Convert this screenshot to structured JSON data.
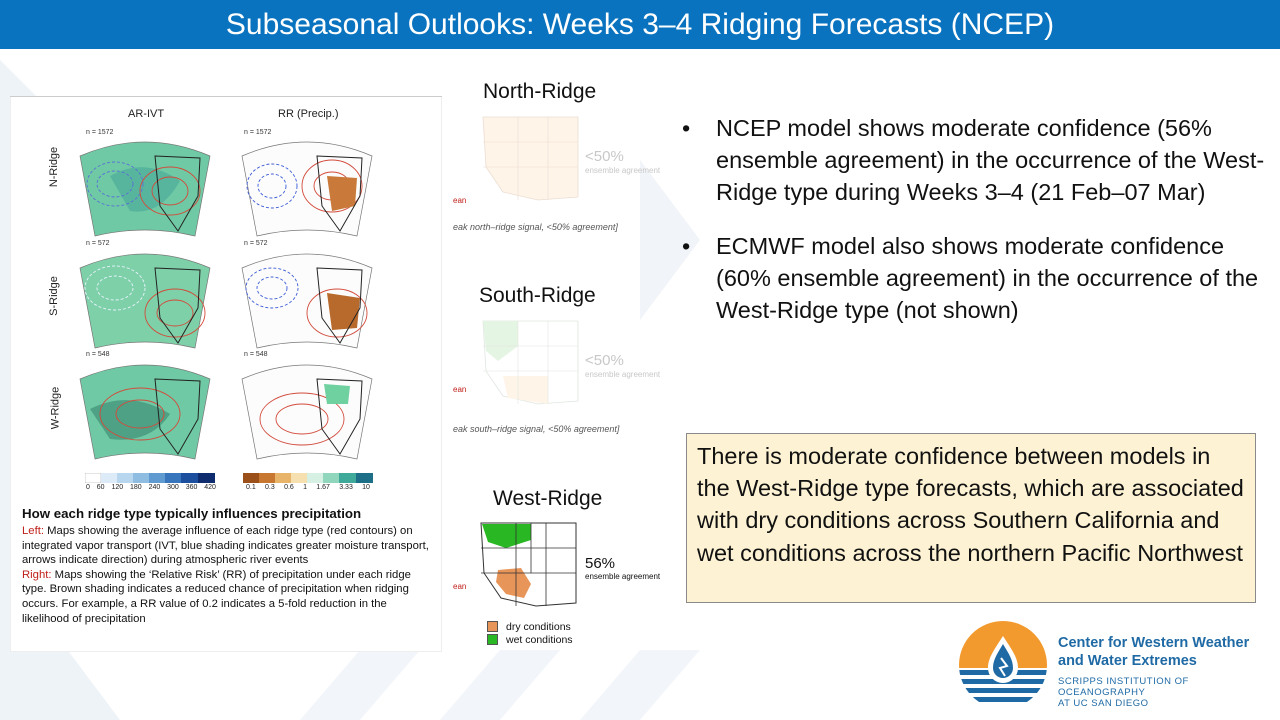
{
  "title": "Subseasonal Outlooks: Weeks 3–4 Ridging Forecasts (NCEP)",
  "figure": {
    "col_headers": [
      "AR-IVT",
      "RR (Precip.)"
    ],
    "row_labels": [
      "N-Ridge",
      "S-Ridge",
      "W-Ridge"
    ],
    "n_labels": [
      "n = 1572",
      "n = 1572",
      "n = 572",
      "n = 572",
      "n = 548",
      "n = 548"
    ],
    "ivt_ticks": [
      "0",
      "60",
      "120",
      "180",
      "240",
      "300",
      "360",
      "420"
    ],
    "rr_ticks": [
      "0.1",
      "0.3",
      "0.6",
      "1",
      "1.67",
      "3.33",
      "10"
    ],
    "caption_title": "How each ridge type typically influences precipitation",
    "left_label": "Left:",
    "left_text": "Maps showing the average influence of each ridge type (red contours) on integrated vapor transport (IVT, blue shading indicates greater moisture transport, arrows indicate direction) during atmospheric river events",
    "right_label": "Right:",
    "right_text": "Maps showing the ‘Relative Risk’ (RR) of precipitation under each ridge type. Brown shading indicates a reduced chance of precipitation when ridging occurs. For example, a RR value of 0.2 indicates a 5-fold reduction in the likelihood of precipitation"
  },
  "mini_panels": [
    {
      "title": "North-Ridge",
      "agreement": "<50%",
      "agreement_sub": "ensemble agreement",
      "note": "eak north–ridge signal, <50% agreement]",
      "frag": "ean"
    },
    {
      "title": "South-Ridge",
      "agreement": "<50%",
      "agreement_sub": "ensemble agreement",
      "note": "eak south–ridge signal, <50% agreement]",
      "frag": "ean"
    },
    {
      "title": "West-Ridge",
      "agreement": "56%",
      "agreement_sub": "ensemble agreement",
      "frag": "ean"
    }
  ],
  "legend": {
    "dry_label": "dry conditions",
    "wet_label": "wet conditions",
    "dry_color": "#e8955a",
    "wet_color": "#29b823"
  },
  "bullets": [
    "NCEP model shows moderate confidence (56% ensemble agreement) in the occurrence of the West-Ridge type during Weeks 3–4 (21 Feb–07 Mar)",
    "ECMWF model also shows moderate confidence (60% ensemble agreement) in the occurrence of the West-Ridge type (not shown)"
  ],
  "bullet_char": "•",
  "summary": "There is moderate confidence between models in the West-Ridge type forecasts, which are associated with dry conditions across Southern California and wet conditions across the northern Pacific Northwest",
  "logo": {
    "line1": "Center for Western Weather",
    "line2": "and Water Extremes",
    "line3": "SCRIPPS INSTITUTION OF OCEANOGRAPHY",
    "line4": "AT UC SAN DIEGO"
  },
  "colors": {
    "title_bar": "#0a73bf",
    "summary_bg": "#fdf3d4",
    "logo_blue": "#1f6aa5",
    "logo_orange": "#f29a2e"
  }
}
